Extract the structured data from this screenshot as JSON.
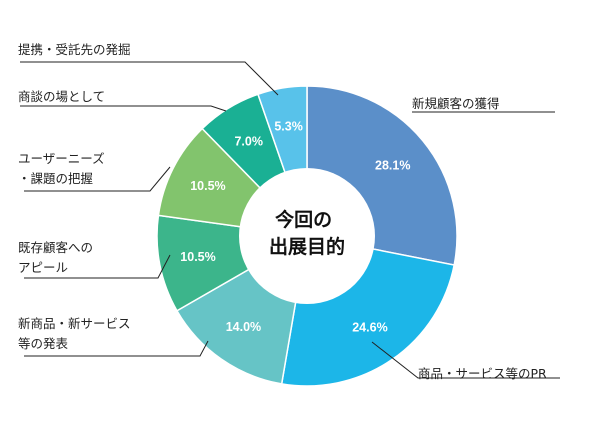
{
  "chart_data": {
    "type": "pie",
    "center_label": [
      "今回の",
      "出展目的"
    ],
    "slices": [
      {
        "label": [
          "新規顧客の獲得"
        ],
        "value": 28.1,
        "display": "28.1%",
        "color": "#5b8fc9"
      },
      {
        "label": [
          "商品・サービス等のPR"
        ],
        "value": 24.6,
        "display": "24.6%",
        "color": "#1cb6e8"
      },
      {
        "label": [
          "新商品・新サービス",
          "等の発表"
        ],
        "value": 14.0,
        "display": "14.0%",
        "color": "#66c4c6"
      },
      {
        "label": [
          "既存顧客への",
          "アピール"
        ],
        "value": 10.5,
        "display": "10.5%",
        "color": "#3cb58b"
      },
      {
        "label": [
          "ユーザーニーズ",
          "・課題の把握"
        ],
        "value": 10.5,
        "display": "10.5%",
        "color": "#82c46d"
      },
      {
        "label": [
          "商談の場として"
        ],
        "value": 7.0,
        "display": "7.0%",
        "color": "#1ab094"
      },
      {
        "label": [
          "提携・受託先の発掘"
        ],
        "value": 5.3,
        "display": "5.3%",
        "color": "#58c2ea"
      }
    ]
  }
}
